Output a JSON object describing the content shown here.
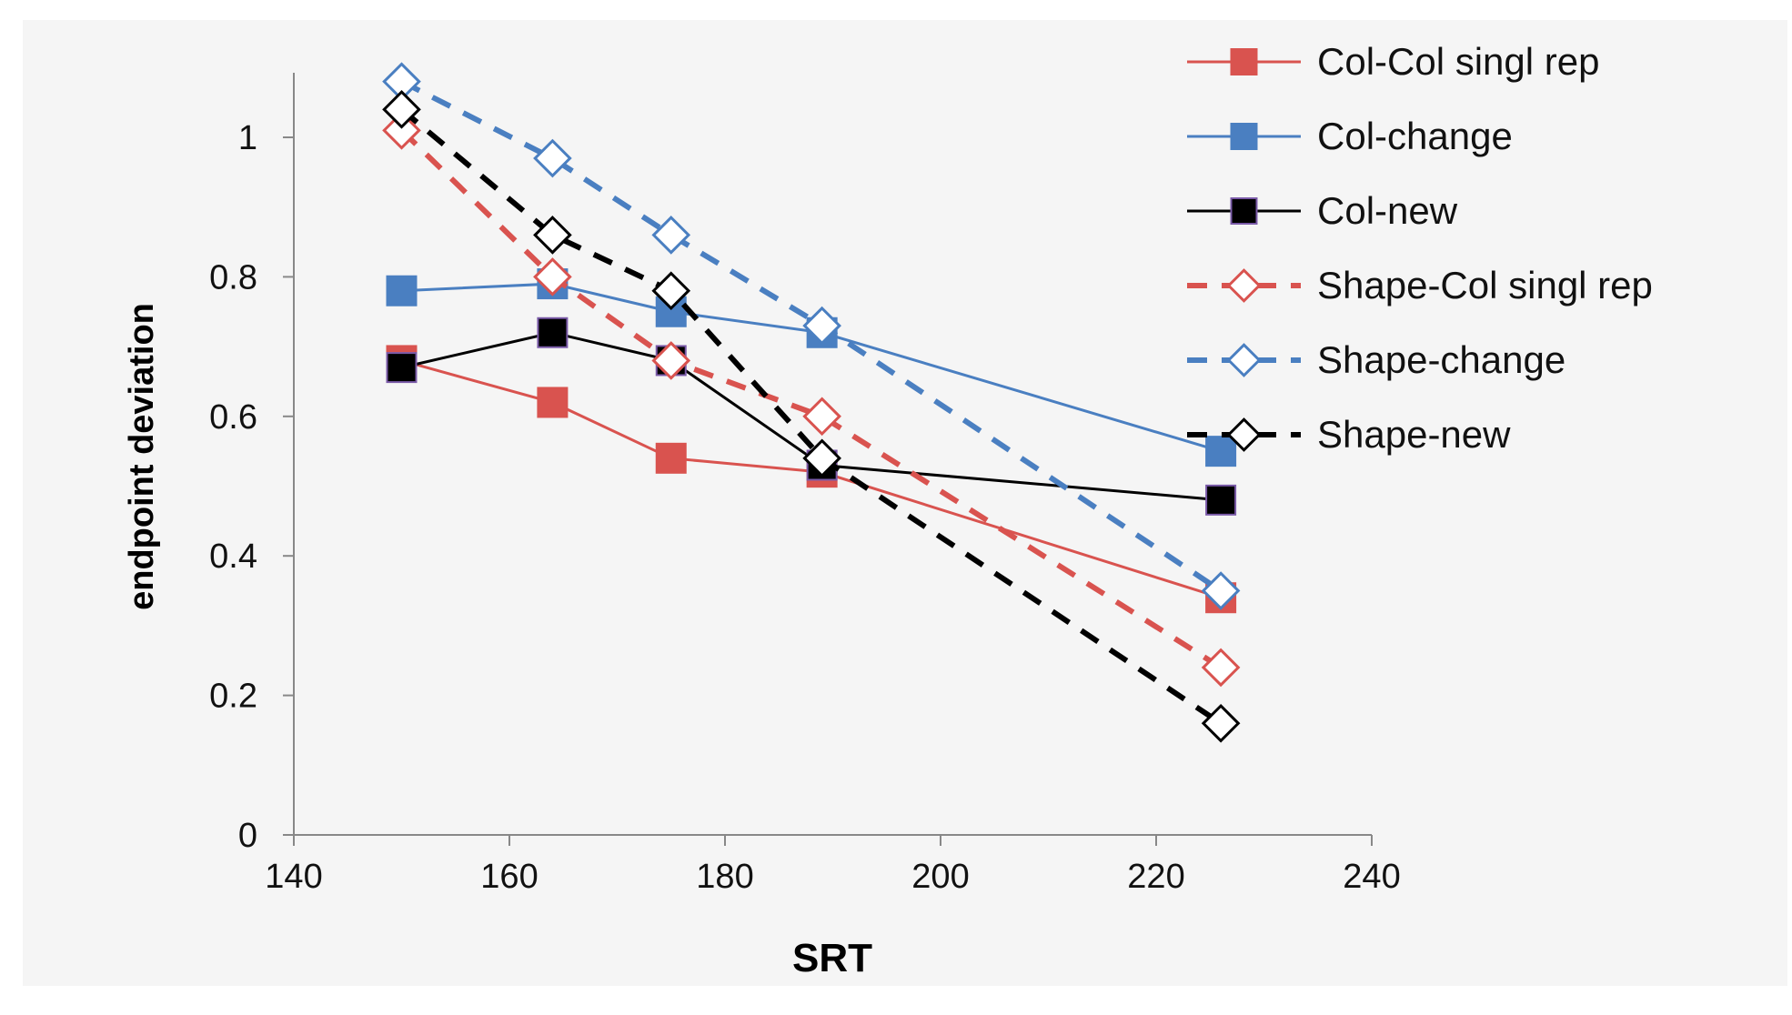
{
  "chart_data": {
    "type": "line",
    "title": "",
    "xlabel": "SRT",
    "ylabel": "endpoint deviation",
    "xlim": [
      140,
      240
    ],
    "ylim": [
      0,
      1.1
    ],
    "x_ticks": [
      140,
      160,
      180,
      200,
      220,
      240
    ],
    "y_ticks": [
      0,
      0.2,
      0.4,
      0.6,
      0.8,
      1
    ],
    "x_tick_labels": [
      "140",
      "160",
      "180",
      "200",
      "220",
      "240"
    ],
    "y_tick_labels": [
      "0",
      "0.2",
      "0.4",
      "0.6",
      "0.8",
      "1"
    ],
    "grid": false,
    "legend_position": "right",
    "series": [
      {
        "name": "Col-Col singl rep",
        "color": "#d9534f",
        "marker": "square-filled",
        "line": "solid",
        "points": [
          [
            150,
            0.68
          ],
          [
            164,
            0.62
          ],
          [
            175,
            0.54
          ],
          [
            189,
            0.52
          ],
          [
            226,
            0.34
          ]
        ]
      },
      {
        "name": "Col-change",
        "color": "#4a7fc1",
        "marker": "square-filled",
        "line": "solid",
        "points": [
          [
            150,
            0.78
          ],
          [
            164,
            0.79
          ],
          [
            175,
            0.75
          ],
          [
            189,
            0.72
          ],
          [
            226,
            0.55
          ]
        ]
      },
      {
        "name": "Col-new",
        "color": "#000000",
        "marker": "square-filled",
        "line": "solid",
        "points": [
          [
            150,
            0.67
          ],
          [
            164,
            0.72
          ],
          [
            175,
            0.68
          ],
          [
            189,
            0.53
          ],
          [
            226,
            0.48
          ]
        ]
      },
      {
        "name": "Shape-Col singl rep",
        "color": "#d9534f",
        "marker": "diamond-open",
        "line": "dashed",
        "points": [
          [
            150,
            1.01
          ],
          [
            164,
            0.8
          ],
          [
            175,
            0.68
          ],
          [
            189,
            0.6
          ],
          [
            226,
            0.24
          ]
        ]
      },
      {
        "name": "Shape-change",
        "color": "#4a7fc1",
        "marker": "diamond-open",
        "line": "dashed",
        "points": [
          [
            150,
            1.08
          ],
          [
            164,
            0.97
          ],
          [
            175,
            0.86
          ],
          [
            189,
            0.73
          ],
          [
            226,
            0.35
          ]
        ]
      },
      {
        "name": "Shape-new",
        "color": "#000000",
        "marker": "diamond-open",
        "line": "dashed",
        "points": [
          [
            150,
            1.04
          ],
          [
            164,
            0.86
          ],
          [
            175,
            0.78
          ],
          [
            189,
            0.54
          ],
          [
            226,
            0.16
          ]
        ]
      }
    ]
  }
}
